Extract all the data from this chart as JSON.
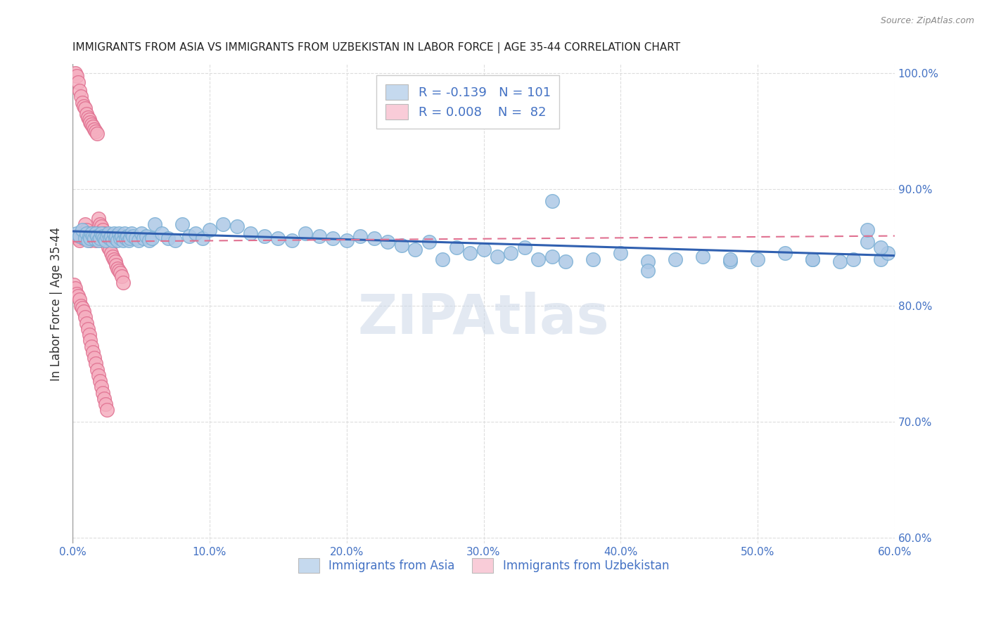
{
  "title": "IMMIGRANTS FROM ASIA VS IMMIGRANTS FROM UZBEKISTAN IN LABOR FORCE | AGE 35-44 CORRELATION CHART",
  "source": "Source: ZipAtlas.com",
  "ylabel": "In Labor Force | Age 35-44",
  "xmin": 0.0,
  "xmax": 0.6,
  "ymin": 0.595,
  "ymax": 1.008,
  "yticks": [
    0.6,
    0.7,
    0.8,
    0.9,
    1.0
  ],
  "ytick_labels": [
    "60.0%",
    "70.0%",
    "80.0%",
    "90.0%",
    "100.0%"
  ],
  "xticks": [
    0.0,
    0.1,
    0.2,
    0.3,
    0.4,
    0.5,
    0.6
  ],
  "xtick_labels": [
    "0.0%",
    "10.0%",
    "20.0%",
    "30.0%",
    "40.0%",
    "50.0%",
    "60.0%"
  ],
  "blue_R": -0.139,
  "blue_N": 101,
  "pink_R": 0.008,
  "pink_N": 82,
  "blue_color": "#adc8e6",
  "pink_color": "#f5afc0",
  "blue_edge": "#7aafd4",
  "pink_edge": "#e07090",
  "blue_line_color": "#3060b0",
  "pink_line_color": "#e07090",
  "legend_blue_face": "#c5d9ee",
  "legend_pink_face": "#f9ccd8",
  "axis_color": "#4472c4",
  "source_color": "#888888",
  "title_color": "#222222",
  "blue_scatter_x": [
    0.003,
    0.005,
    0.007,
    0.009,
    0.01,
    0.011,
    0.012,
    0.013,
    0.014,
    0.015,
    0.016,
    0.017,
    0.018,
    0.019,
    0.02,
    0.021,
    0.022,
    0.023,
    0.024,
    0.025,
    0.026,
    0.027,
    0.028,
    0.029,
    0.03,
    0.031,
    0.032,
    0.033,
    0.034,
    0.035,
    0.036,
    0.037,
    0.038,
    0.039,
    0.04,
    0.041,
    0.042,
    0.043,
    0.044,
    0.046,
    0.048,
    0.05,
    0.052,
    0.054,
    0.056,
    0.058,
    0.06,
    0.065,
    0.07,
    0.075,
    0.08,
    0.085,
    0.09,
    0.095,
    0.1,
    0.11,
    0.12,
    0.13,
    0.14,
    0.15,
    0.16,
    0.17,
    0.18,
    0.19,
    0.2,
    0.21,
    0.22,
    0.23,
    0.24,
    0.25,
    0.26,
    0.27,
    0.28,
    0.29,
    0.3,
    0.31,
    0.32,
    0.33,
    0.34,
    0.35,
    0.36,
    0.38,
    0.4,
    0.42,
    0.44,
    0.46,
    0.48,
    0.5,
    0.52,
    0.54,
    0.56,
    0.57,
    0.58,
    0.59,
    0.595,
    0.35,
    0.42,
    0.48,
    0.54,
    0.58,
    0.59
  ],
  "blue_scatter_y": [
    0.862,
    0.86,
    0.865,
    0.858,
    0.862,
    0.856,
    0.86,
    0.858,
    0.862,
    0.86,
    0.858,
    0.862,
    0.86,
    0.856,
    0.858,
    0.862,
    0.86,
    0.858,
    0.856,
    0.86,
    0.862,
    0.858,
    0.86,
    0.856,
    0.862,
    0.858,
    0.86,
    0.856,
    0.862,
    0.858,
    0.86,
    0.856,
    0.862,
    0.858,
    0.86,
    0.856,
    0.858,
    0.862,
    0.86,
    0.858,
    0.856,
    0.862,
    0.858,
    0.86,
    0.856,
    0.858,
    0.87,
    0.862,
    0.858,
    0.856,
    0.87,
    0.86,
    0.862,
    0.858,
    0.865,
    0.87,
    0.868,
    0.862,
    0.86,
    0.858,
    0.856,
    0.862,
    0.86,
    0.858,
    0.856,
    0.86,
    0.858,
    0.855,
    0.852,
    0.848,
    0.855,
    0.84,
    0.85,
    0.845,
    0.848,
    0.842,
    0.845,
    0.85,
    0.84,
    0.842,
    0.838,
    0.84,
    0.845,
    0.838,
    0.84,
    0.842,
    0.838,
    0.84,
    0.845,
    0.84,
    0.838,
    0.84,
    0.855,
    0.84,
    0.845,
    0.89,
    0.83,
    0.84,
    0.84,
    0.865,
    0.85
  ],
  "pink_scatter_x": [
    0.002,
    0.003,
    0.004,
    0.005,
    0.006,
    0.007,
    0.008,
    0.009,
    0.01,
    0.011,
    0.012,
    0.013,
    0.014,
    0.015,
    0.016,
    0.017,
    0.018,
    0.019,
    0.02,
    0.021,
    0.022,
    0.023,
    0.003,
    0.004,
    0.005,
    0.006,
    0.007,
    0.008,
    0.009,
    0.01,
    0.011,
    0.012,
    0.013,
    0.014,
    0.015,
    0.016,
    0.017,
    0.018,
    0.019,
    0.02,
    0.021,
    0.022,
    0.023,
    0.024,
    0.025,
    0.026,
    0.027,
    0.028,
    0.029,
    0.03,
    0.031,
    0.032,
    0.033,
    0.034,
    0.035,
    0.036,
    0.037,
    0.001,
    0.002,
    0.003,
    0.004,
    0.005,
    0.006,
    0.007,
    0.008,
    0.009,
    0.01,
    0.011,
    0.012,
    0.013,
    0.014,
    0.015,
    0.016,
    0.017,
    0.018,
    0.019,
    0.02,
    0.021,
    0.022,
    0.023,
    0.024,
    0.025
  ],
  "pink_scatter_y": [
    1.0,
    0.998,
    0.992,
    0.985,
    0.98,
    0.975,
    0.972,
    0.97,
    0.965,
    0.962,
    0.96,
    0.958,
    0.956,
    0.954,
    0.952,
    0.95,
    0.948,
    0.875,
    0.87,
    0.868,
    0.865,
    0.862,
    0.86,
    0.858,
    0.856,
    0.862,
    0.86,
    0.858,
    0.87,
    0.865,
    0.862,
    0.858,
    0.856,
    0.862,
    0.86,
    0.858,
    0.856,
    0.862,
    0.86,
    0.858,
    0.856,
    0.862,
    0.86,
    0.858,
    0.856,
    0.85,
    0.848,
    0.845,
    0.842,
    0.84,
    0.838,
    0.835,
    0.832,
    0.83,
    0.828,
    0.825,
    0.82,
    0.818,
    0.815,
    0.81,
    0.808,
    0.805,
    0.8,
    0.798,
    0.795,
    0.79,
    0.785,
    0.78,
    0.775,
    0.77,
    0.765,
    0.76,
    0.755,
    0.75,
    0.745,
    0.74,
    0.735,
    0.73,
    0.725,
    0.72,
    0.715,
    0.71
  ],
  "blue_trend_x": [
    0.0,
    0.6
  ],
  "blue_trend_y": [
    0.864,
    0.843
  ],
  "pink_trend_x": [
    0.0,
    0.6
  ],
  "pink_trend_y": [
    0.855,
    0.86
  ]
}
